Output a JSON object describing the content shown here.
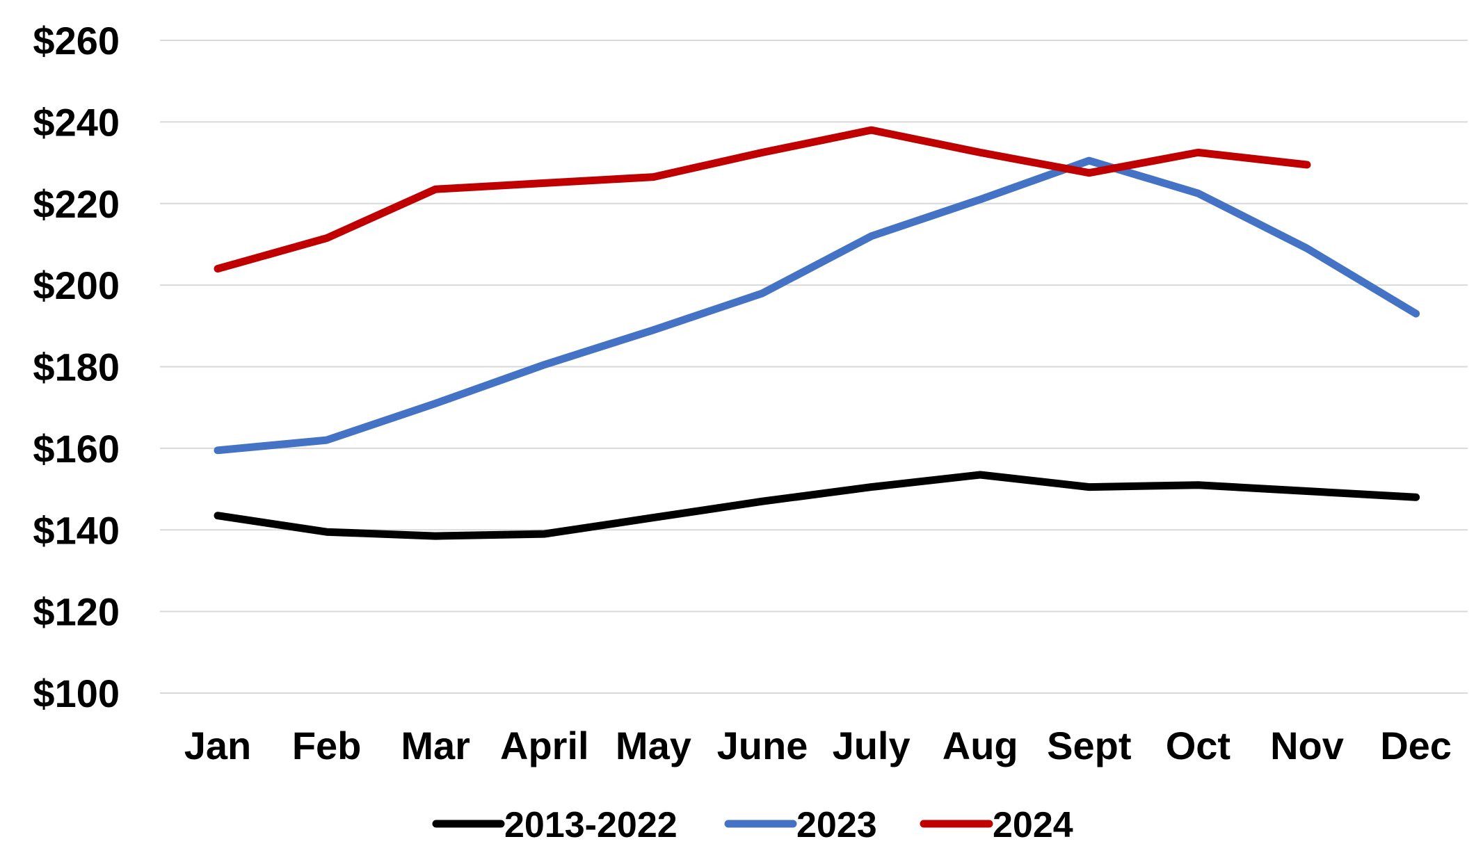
{
  "chart_data": {
    "type": "line",
    "title": "",
    "xlabel": "",
    "ylabel": "",
    "categories": [
      "Jan",
      "Feb",
      "Mar",
      "April",
      "May",
      "June",
      "July",
      "Aug",
      "Sept",
      "Oct",
      "Nov",
      "Dec"
    ],
    "ylim": [
      100,
      260
    ],
    "yticks": [
      100,
      120,
      140,
      160,
      180,
      200,
      220,
      240,
      260
    ],
    "ytick_labels": [
      "$100",
      "$120",
      "$140",
      "$160",
      "$180",
      "$200",
      "$220",
      "$240",
      "$260"
    ],
    "grid": true,
    "legend_position": "bottom",
    "series": [
      {
        "name": "2013-2022",
        "color": "#000000",
        "values": [
          143.5,
          139.5,
          138.5,
          139,
          143,
          147,
          150.5,
          153.5,
          150.5,
          151,
          149.5,
          148
        ]
      },
      {
        "name": "2023",
        "color": "#4472C4",
        "values": [
          159.5,
          162,
          171,
          180.5,
          189,
          198,
          212,
          221,
          230.5,
          222.5,
          209,
          193
        ]
      },
      {
        "name": "2024",
        "color": "#C00000",
        "values": [
          204,
          211.5,
          223.5,
          225,
          226.5,
          232.5,
          238,
          232.5,
          227.5,
          232.5,
          229.5,
          null
        ]
      }
    ]
  }
}
